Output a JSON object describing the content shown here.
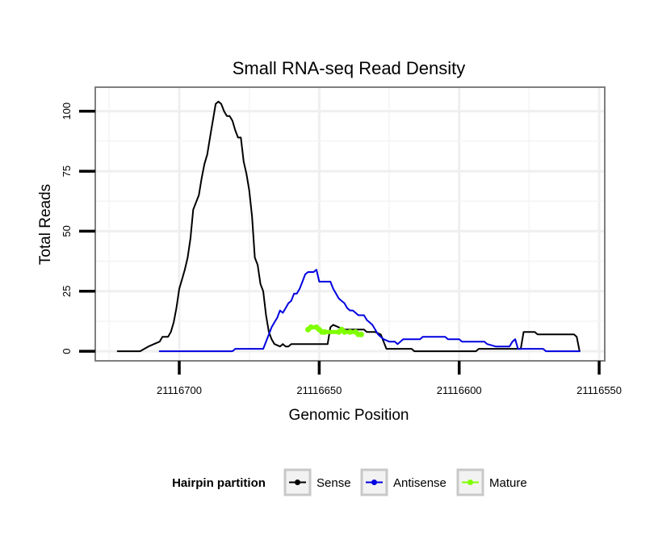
{
  "chart_data": {
    "type": "line",
    "title": "Small RNA-seq Read Density",
    "xlabel": "Genomic Position",
    "ylabel": "Total Reads",
    "x_reversed": true,
    "xlim": [
      21116730,
      21116548
    ],
    "ylim": [
      -4,
      110
    ],
    "x_ticks": [
      21116700,
      21116650,
      21116600,
      21116550
    ],
    "x_tick_labels": [
      "21116700",
      "21116650",
      "21116600",
      "21116550"
    ],
    "y_ticks": [
      0,
      25,
      50,
      75,
      100
    ],
    "y_tick_labels": [
      "0",
      "25",
      "50",
      "75",
      "100"
    ],
    "grid": true,
    "legend": {
      "title": "Hairpin partition",
      "placement": "bottom",
      "entries": [
        "Sense",
        "Antisense",
        "Mature"
      ]
    },
    "series": [
      {
        "name": "Sense",
        "color": "#000000",
        "points": [
          [
            21116722,
            0
          ],
          [
            21116714,
            0
          ],
          [
            21116711,
            2
          ],
          [
            21116709,
            3
          ],
          [
            21116707,
            4
          ],
          [
            21116706,
            6
          ],
          [
            21116704,
            6
          ],
          [
            21116703,
            8
          ],
          [
            21116702,
            12
          ],
          [
            21116701,
            18
          ],
          [
            21116700,
            26
          ],
          [
            21116699,
            30
          ],
          [
            21116698,
            34
          ],
          [
            21116697,
            39
          ],
          [
            21116696,
            47
          ],
          [
            21116695,
            59
          ],
          [
            21116694,
            62
          ],
          [
            21116693,
            65
          ],
          [
            21116692,
            72
          ],
          [
            21116691,
            78
          ],
          [
            21116690,
            82
          ],
          [
            21116689,
            89
          ],
          [
            21116688,
            96
          ],
          [
            21116687,
            103
          ],
          [
            21116686,
            104
          ],
          [
            21116685,
            103
          ],
          [
            21116684,
            100
          ],
          [
            21116683,
            98
          ],
          [
            21116682,
            98
          ],
          [
            21116681,
            96
          ],
          [
            21116680,
            92
          ],
          [
            21116679,
            89
          ],
          [
            21116678,
            89
          ],
          [
            21116677,
            79
          ],
          [
            21116676,
            74
          ],
          [
            21116675,
            67
          ],
          [
            21116674,
            56
          ],
          [
            21116673,
            39
          ],
          [
            21116672,
            36
          ],
          [
            21116671,
            28
          ],
          [
            21116670,
            25
          ],
          [
            21116669,
            15
          ],
          [
            21116668,
            8
          ],
          [
            21116667,
            5
          ],
          [
            21116666,
            3
          ],
          [
            21116664,
            2
          ],
          [
            21116663,
            3
          ],
          [
            21116662,
            2
          ],
          [
            21116661,
            2
          ],
          [
            21116660,
            3
          ],
          [
            21116657,
            3
          ],
          [
            21116650,
            3
          ],
          [
            21116647,
            3
          ],
          [
            21116646,
            10
          ],
          [
            21116645,
            11
          ],
          [
            21116643,
            10
          ],
          [
            21116642,
            9
          ],
          [
            21116637,
            9
          ],
          [
            21116634,
            9
          ],
          [
            21116633,
            8
          ],
          [
            21116630,
            8
          ],
          [
            21116628,
            7
          ],
          [
            21116627,
            4
          ],
          [
            21116626,
            1
          ],
          [
            21116620,
            1
          ],
          [
            21116617,
            1
          ],
          [
            21116616,
            0
          ],
          [
            21116606,
            0
          ],
          [
            21116594,
            0
          ],
          [
            21116593,
            1
          ],
          [
            21116578,
            1
          ],
          [
            21116577,
            8
          ],
          [
            21116573,
            8
          ],
          [
            21116572,
            7
          ],
          [
            21116559,
            7
          ],
          [
            21116558,
            6
          ],
          [
            21116557,
            0
          ]
        ]
      },
      {
        "name": "Antisense",
        "color": "#0000e0",
        "points": [
          [
            21116707,
            0
          ],
          [
            21116681,
            0
          ],
          [
            21116680,
            1
          ],
          [
            21116672,
            1
          ],
          [
            21116670,
            1
          ],
          [
            21116669,
            4
          ],
          [
            21116668,
            7
          ],
          [
            21116667,
            10
          ],
          [
            21116666,
            12
          ],
          [
            21116665,
            14
          ],
          [
            21116664,
            17
          ],
          [
            21116663,
            16
          ],
          [
            21116662,
            18
          ],
          [
            21116661,
            20
          ],
          [
            21116660,
            21
          ],
          [
            21116659,
            24
          ],
          [
            21116658,
            24
          ],
          [
            21116657,
            26
          ],
          [
            21116656,
            29
          ],
          [
            21116655,
            32
          ],
          [
            21116654,
            33
          ],
          [
            21116652,
            33
          ],
          [
            21116651,
            34
          ],
          [
            21116650,
            29
          ],
          [
            21116648,
            29
          ],
          [
            21116646,
            29
          ],
          [
            21116645,
            26
          ],
          [
            21116644,
            24
          ],
          [
            21116643,
            22
          ],
          [
            21116642,
            21
          ],
          [
            21116641,
            20
          ],
          [
            21116640,
            18
          ],
          [
            21116639,
            17
          ],
          [
            21116638,
            17
          ],
          [
            21116637,
            16
          ],
          [
            21116636,
            15
          ],
          [
            21116634,
            15
          ],
          [
            21116633,
            13
          ],
          [
            21116632,
            12
          ],
          [
            21116631,
            11
          ],
          [
            21116630,
            9
          ],
          [
            21116629,
            7
          ],
          [
            21116628,
            6
          ],
          [
            21116627,
            5
          ],
          [
            21116625,
            4
          ],
          [
            21116623,
            4
          ],
          [
            21116622,
            3
          ],
          [
            21116621,
            4
          ],
          [
            21116620,
            5
          ],
          [
            21116617,
            5
          ],
          [
            21116614,
            5
          ],
          [
            21116613,
            6
          ],
          [
            21116608,
            6
          ],
          [
            21116605,
            6
          ],
          [
            21116604,
            5
          ],
          [
            21116600,
            5
          ],
          [
            21116599,
            4
          ],
          [
            21116595,
            4
          ],
          [
            21116591,
            4
          ],
          [
            21116590,
            3
          ],
          [
            21116587,
            2
          ],
          [
            21116582,
            2
          ],
          [
            21116581,
            4
          ],
          [
            21116580,
            5
          ],
          [
            21116579,
            1
          ],
          [
            21116570,
            1
          ],
          [
            21116569,
            0
          ],
          [
            21116557,
            0
          ]
        ]
      },
      {
        "name": "Mature",
        "color": "#7fff00",
        "points": [
          [
            21116654,
            9
          ],
          [
            21116653,
            10
          ],
          [
            21116651,
            10
          ],
          [
            21116650,
            9
          ],
          [
            21116649,
            8
          ],
          [
            21116648,
            8
          ],
          [
            21116643,
            8
          ],
          [
            21116642,
            9
          ],
          [
            21116641,
            8
          ],
          [
            21116639,
            8
          ],
          [
            21116637,
            8
          ],
          [
            21116636,
            7
          ],
          [
            21116635,
            7
          ]
        ]
      }
    ]
  }
}
